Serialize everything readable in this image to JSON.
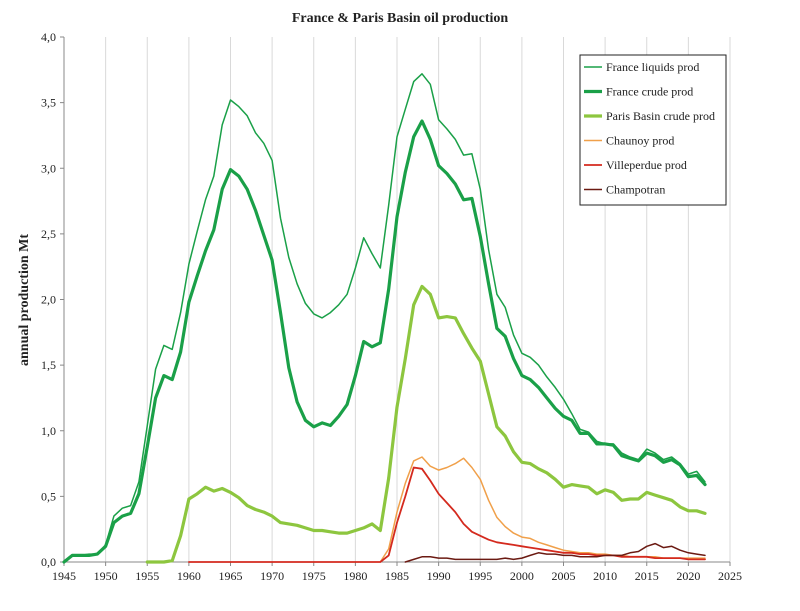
{
  "chart_data": {
    "type": "line",
    "title": "France & Paris Basin oil production",
    "xlabel": "",
    "ylabel": "annual production Mt",
    "xlim": [
      1945,
      2025
    ],
    "ylim": [
      0,
      4
    ],
    "x_ticks": [
      "1945",
      "1950",
      "1955",
      "1960",
      "1965",
      "1970",
      "1975",
      "1980",
      "1985",
      "1990",
      "1995",
      "2000",
      "2005",
      "2010",
      "2015",
      "2020",
      "2025"
    ],
    "y_ticks": [
      "0,0",
      "0,5",
      "1,0",
      "1,5",
      "2,0",
      "2,5",
      "3,0",
      "3,5",
      "4,0"
    ],
    "grid": "vertical",
    "legend_position": "top-right",
    "series": [
      {
        "name": "France liquids prod",
        "color": "#1aa048",
        "style": "thin",
        "x": [
          1945,
          1946,
          1947,
          1948,
          1949,
          1950,
          1951,
          1952,
          1953,
          1954,
          1955,
          1956,
          1957,
          1958,
          1959,
          1960,
          1961,
          1962,
          1963,
          1964,
          1965,
          1966,
          1967,
          1968,
          1969,
          1970,
          1971,
          1972,
          1973,
          1974,
          1975,
          1976,
          1977,
          1978,
          1979,
          1980,
          1981,
          1982,
          1983,
          1984,
          1985,
          1986,
          1987,
          1988,
          1989,
          1990,
          1991,
          1992,
          1993,
          1994,
          1995,
          1996,
          1997,
          1998,
          1999,
          2000,
          2001,
          2002,
          2003,
          2004,
          2005,
          2006,
          2007,
          2008,
          2009,
          2010,
          2011,
          2012,
          2013,
          2014,
          2015,
          2016,
          2017,
          2018,
          2019,
          2020,
          2021,
          2022
        ],
        "y": [
          0.0,
          0.05,
          0.05,
          0.06,
          0.06,
          0.13,
          0.35,
          0.41,
          0.43,
          0.61,
          1.04,
          1.47,
          1.65,
          1.62,
          1.9,
          2.27,
          2.52,
          2.76,
          2.94,
          3.33,
          3.52,
          3.47,
          3.4,
          3.27,
          3.19,
          3.06,
          2.62,
          2.32,
          2.12,
          1.97,
          1.89,
          1.86,
          1.9,
          1.96,
          2.04,
          2.24,
          2.47,
          2.35,
          2.24,
          2.72,
          3.24,
          3.45,
          3.66,
          3.72,
          3.64,
          3.37,
          3.3,
          3.22,
          3.1,
          3.11,
          2.84,
          2.38,
          2.04,
          1.94,
          1.73,
          1.59,
          1.56,
          1.5,
          1.41,
          1.33,
          1.24,
          1.13,
          1.01,
          0.99,
          0.92,
          0.9,
          0.9,
          0.83,
          0.8,
          0.78,
          0.86,
          0.83,
          0.78,
          0.8,
          0.75,
          0.67,
          0.69,
          0.61
        ]
      },
      {
        "name": "France crude prod",
        "color": "#1aa048",
        "style": "thick",
        "x": [
          1945,
          1946,
          1947,
          1948,
          1949,
          1950,
          1951,
          1952,
          1953,
          1954,
          1955,
          1956,
          1957,
          1958,
          1959,
          1960,
          1961,
          1962,
          1963,
          1964,
          1965,
          1966,
          1967,
          1968,
          1969,
          1970,
          1971,
          1972,
          1973,
          1974,
          1975,
          1976,
          1977,
          1978,
          1979,
          1980,
          1981,
          1982,
          1983,
          1984,
          1985,
          1986,
          1987,
          1988,
          1989,
          1990,
          1991,
          1992,
          1993,
          1994,
          1995,
          1996,
          1997,
          1998,
          1999,
          2000,
          2001,
          2002,
          2003,
          2004,
          2005,
          2006,
          2007,
          2008,
          2009,
          2010,
          2011,
          2012,
          2013,
          2014,
          2015,
          2016,
          2017,
          2018,
          2019,
          2020,
          2021,
          2022
        ],
        "y": [
          0.0,
          0.05,
          0.05,
          0.05,
          0.06,
          0.12,
          0.3,
          0.35,
          0.37,
          0.52,
          0.88,
          1.25,
          1.42,
          1.39,
          1.6,
          1.98,
          2.18,
          2.37,
          2.53,
          2.84,
          2.99,
          2.94,
          2.84,
          2.68,
          2.49,
          2.3,
          1.9,
          1.48,
          1.22,
          1.08,
          1.03,
          1.06,
          1.04,
          1.11,
          1.2,
          1.42,
          1.68,
          1.64,
          1.67,
          2.08,
          2.63,
          2.97,
          3.24,
          3.36,
          3.22,
          3.02,
          2.96,
          2.88,
          2.76,
          2.77,
          2.48,
          2.12,
          1.78,
          1.72,
          1.55,
          1.42,
          1.39,
          1.33,
          1.25,
          1.17,
          1.11,
          1.08,
          0.98,
          0.98,
          0.9,
          0.9,
          0.89,
          0.81,
          0.79,
          0.77,
          0.83,
          0.81,
          0.76,
          0.78,
          0.74,
          0.65,
          0.66,
          0.59
        ]
      },
      {
        "name": "Paris Basin crude prod",
        "color": "#8dc63f",
        "style": "thick",
        "x": [
          1955,
          1956,
          1957,
          1958,
          1959,
          1960,
          1961,
          1962,
          1963,
          1964,
          1965,
          1966,
          1967,
          1968,
          1969,
          1970,
          1971,
          1972,
          1973,
          1974,
          1975,
          1976,
          1977,
          1978,
          1979,
          1980,
          1981,
          1982,
          1983,
          1984,
          1985,
          1986,
          1987,
          1988,
          1989,
          1990,
          1991,
          1992,
          1993,
          1994,
          1995,
          1996,
          1997,
          1998,
          1999,
          2000,
          2001,
          2002,
          2003,
          2004,
          2005,
          2006,
          2007,
          2008,
          2009,
          2010,
          2011,
          2012,
          2013,
          2014,
          2015,
          2016,
          2017,
          2018,
          2019,
          2020,
          2021,
          2022
        ],
        "y": [
          0.0,
          0.0,
          0.0,
          0.01,
          0.2,
          0.48,
          0.52,
          0.57,
          0.54,
          0.56,
          0.53,
          0.49,
          0.43,
          0.4,
          0.38,
          0.35,
          0.3,
          0.29,
          0.28,
          0.26,
          0.24,
          0.24,
          0.23,
          0.22,
          0.22,
          0.24,
          0.26,
          0.29,
          0.24,
          0.64,
          1.18,
          1.55,
          1.96,
          2.1,
          2.04,
          1.86,
          1.87,
          1.86,
          1.74,
          1.63,
          1.53,
          1.28,
          1.03,
          0.96,
          0.84,
          0.76,
          0.75,
          0.71,
          0.68,
          0.63,
          0.57,
          0.59,
          0.58,
          0.57,
          0.52,
          0.55,
          0.53,
          0.47,
          0.48,
          0.48,
          0.53,
          0.51,
          0.49,
          0.47,
          0.42,
          0.39,
          0.39,
          0.37
        ]
      },
      {
        "name": "Chaunoy prod",
        "color": "#f0a04a",
        "style": "thin",
        "x": [
          1983,
          1984,
          1985,
          1986,
          1987,
          1988,
          1989,
          1990,
          1991,
          1992,
          1993,
          1994,
          1995,
          1996,
          1997,
          1998,
          1999,
          2000,
          2001,
          2002,
          2003,
          2004,
          2005,
          2006,
          2007,
          2008,
          2009,
          2010,
          2011,
          2012,
          2013,
          2014,
          2015,
          2016,
          2017,
          2018,
          2019,
          2020,
          2021,
          2022
        ],
        "y": [
          0.0,
          0.1,
          0.38,
          0.6,
          0.77,
          0.8,
          0.73,
          0.7,
          0.72,
          0.75,
          0.79,
          0.72,
          0.63,
          0.47,
          0.34,
          0.27,
          0.22,
          0.19,
          0.18,
          0.15,
          0.13,
          0.11,
          0.09,
          0.08,
          0.07,
          0.07,
          0.06,
          0.06,
          0.05,
          0.05,
          0.04,
          0.04,
          0.04,
          0.04,
          0.03,
          0.03,
          0.03,
          0.03,
          0.03,
          0.03
        ]
      },
      {
        "name": "Villeperdue prod",
        "color": "#d42a1e",
        "style": "medium",
        "x": [
          1960,
          1965,
          1970,
          1975,
          1980,
          1983,
          1984,
          1985,
          1986,
          1987,
          1988,
          1989,
          1990,
          1991,
          1992,
          1993,
          1994,
          1995,
          1996,
          1997,
          1998,
          1999,
          2000,
          2001,
          2002,
          2003,
          2004,
          2005,
          2006,
          2007,
          2008,
          2009,
          2010,
          2011,
          2012,
          2013,
          2014,
          2015,
          2016,
          2017,
          2018,
          2019,
          2020,
          2021,
          2022
        ],
        "y": [
          0.0,
          0.0,
          0.0,
          0.0,
          0.0,
          0.0,
          0.05,
          0.3,
          0.5,
          0.72,
          0.71,
          0.62,
          0.52,
          0.45,
          0.38,
          0.29,
          0.23,
          0.2,
          0.17,
          0.15,
          0.14,
          0.13,
          0.12,
          0.11,
          0.1,
          0.09,
          0.08,
          0.07,
          0.07,
          0.06,
          0.06,
          0.05,
          0.05,
          0.05,
          0.04,
          0.04,
          0.04,
          0.04,
          0.03,
          0.03,
          0.03,
          0.03,
          0.02,
          0.02,
          0.02
        ]
      },
      {
        "name": "Champotran",
        "color": "#6b1a12",
        "style": "thin",
        "x": [
          1986,
          1987,
          1988,
          1989,
          1990,
          1991,
          1992,
          1993,
          1994,
          1995,
          1996,
          1997,
          1998,
          1999,
          2000,
          2001,
          2002,
          2003,
          2004,
          2005,
          2006,
          2007,
          2008,
          2009,
          2010,
          2011,
          2012,
          2013,
          2014,
          2015,
          2016,
          2017,
          2018,
          2019,
          2020,
          2021,
          2022
        ],
        "y": [
          0.0,
          0.02,
          0.04,
          0.04,
          0.03,
          0.03,
          0.02,
          0.02,
          0.02,
          0.02,
          0.02,
          0.02,
          0.03,
          0.02,
          0.03,
          0.05,
          0.07,
          0.06,
          0.06,
          0.05,
          0.05,
          0.04,
          0.04,
          0.04,
          0.05,
          0.05,
          0.05,
          0.07,
          0.08,
          0.12,
          0.14,
          0.11,
          0.12,
          0.09,
          0.07,
          0.06,
          0.05
        ]
      }
    ]
  }
}
